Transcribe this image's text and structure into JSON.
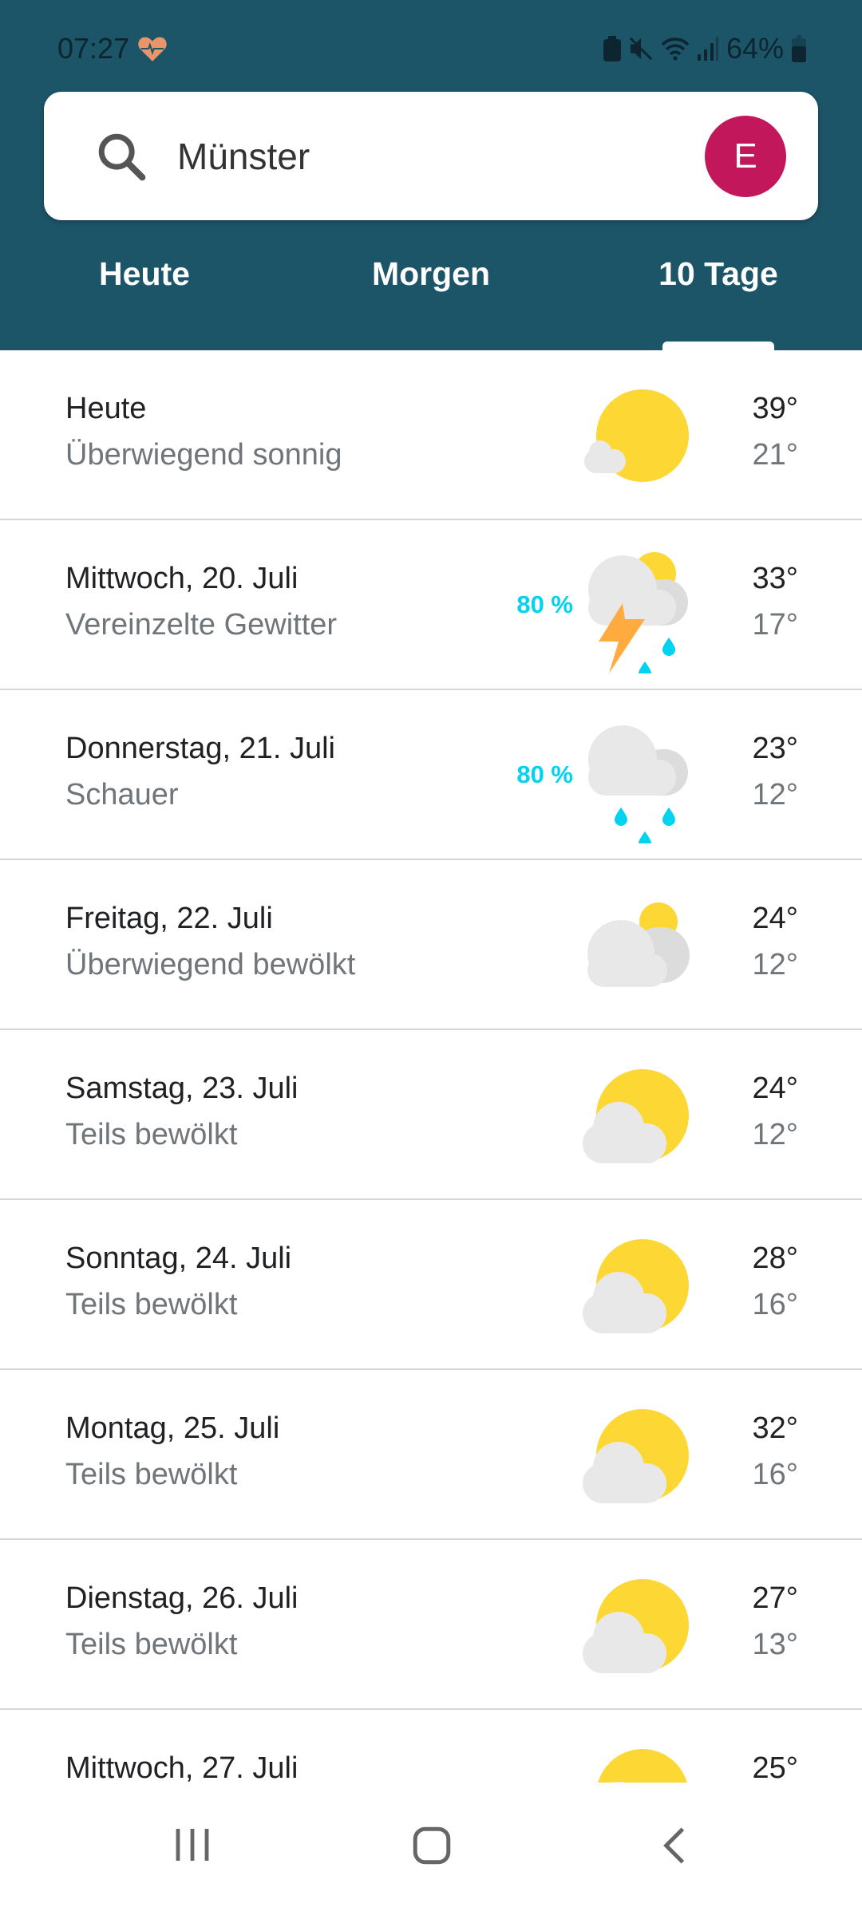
{
  "status_bar": {
    "time": "07:27",
    "battery": "64%",
    "icons": [
      "heart-rate-icon",
      "battery-saver-icon",
      "mute-icon",
      "wifi-icon",
      "signal-icon",
      "battery-icon"
    ]
  },
  "search": {
    "value": "Münster",
    "avatar_letter": "E",
    "avatar_color": "#c2185b"
  },
  "tabs": [
    {
      "label": "Heute"
    },
    {
      "label": "Morgen"
    },
    {
      "label": "10 Tage",
      "active": true
    }
  ],
  "colors": {
    "header": "#1c5468",
    "precip": "#00d3ef",
    "sun": "#fdd835",
    "bolt": "#ffab40"
  },
  "days": [
    {
      "title": "Heute",
      "condition": "Überwiegend sonnig",
      "precip": "",
      "high": "39°",
      "low": "21°",
      "icon": "mostly-sunny"
    },
    {
      "title": "Mittwoch, 20. Juli",
      "condition": "Vereinzelte Gewitter",
      "precip": "80 %",
      "high": "33°",
      "low": "17°",
      "icon": "thunderstorm"
    },
    {
      "title": "Donnerstag, 21. Juli",
      "condition": "Schauer",
      "precip": "80 %",
      "high": "23°",
      "low": "12°",
      "icon": "showers"
    },
    {
      "title": "Freitag, 22. Juli",
      "condition": "Überwiegend bewölkt",
      "precip": "",
      "high": "24°",
      "low": "12°",
      "icon": "mostly-cloudy"
    },
    {
      "title": "Samstag, 23. Juli",
      "condition": "Teils bewölkt",
      "precip": "",
      "high": "24°",
      "low": "12°",
      "icon": "partly-cloudy"
    },
    {
      "title": "Sonntag, 24. Juli",
      "condition": "Teils bewölkt",
      "precip": "",
      "high": "28°",
      "low": "16°",
      "icon": "partly-cloudy"
    },
    {
      "title": "Montag, 25. Juli",
      "condition": "Teils bewölkt",
      "precip": "",
      "high": "32°",
      "low": "16°",
      "icon": "partly-cloudy"
    },
    {
      "title": "Dienstag, 26. Juli",
      "condition": "Teils bewölkt",
      "precip": "",
      "high": "27°",
      "low": "13°",
      "icon": "partly-cloudy"
    },
    {
      "title": "Mittwoch, 27. Juli",
      "condition": "",
      "precip": "",
      "high": "25°",
      "low": "",
      "icon": "partly-cloudy"
    }
  ]
}
